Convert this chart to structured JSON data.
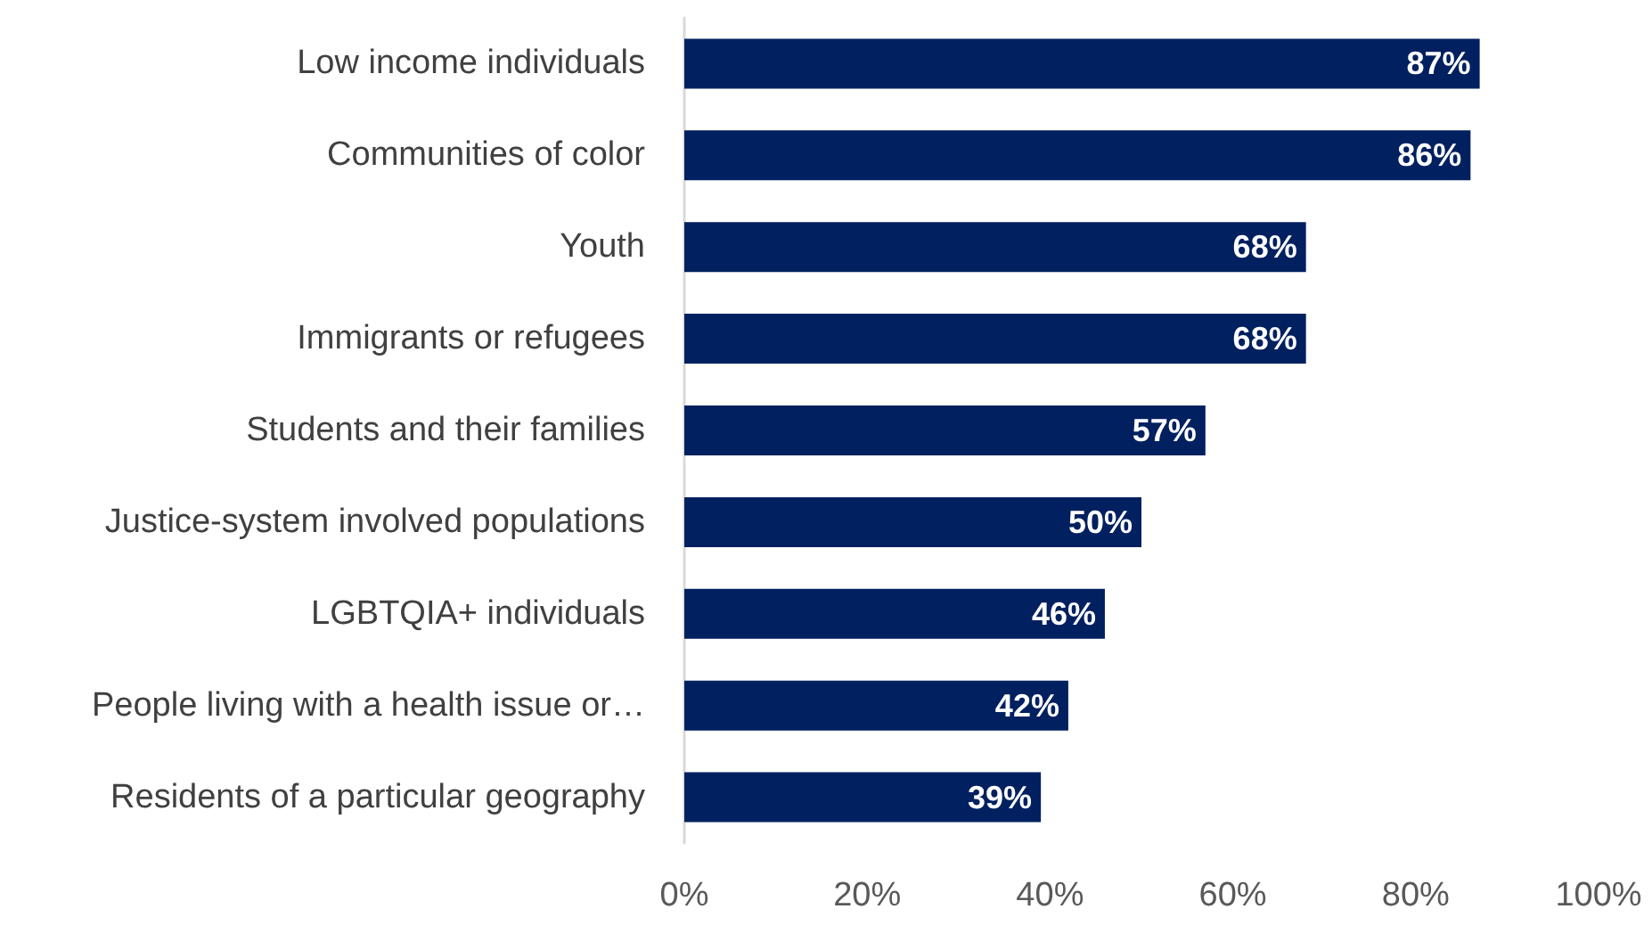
{
  "chart_data": {
    "type": "bar",
    "orientation": "horizontal",
    "categories": [
      "Low income individuals",
      "Communities of color",
      "Youth",
      "Immigrants or refugees",
      "Students and their families",
      "Justice-system involved populations",
      "LGBTQIA+ individuals",
      "People living with a health issue or…",
      "Residents of a particular geography"
    ],
    "values": [
      87,
      86,
      68,
      68,
      57,
      50,
      46,
      42,
      39
    ],
    "value_labels": [
      "87%",
      "86%",
      "68%",
      "68%",
      "57%",
      "50%",
      "46%",
      "42%",
      "39%"
    ],
    "color": "#002060",
    "xlim": [
      0,
      100
    ],
    "xticks": [
      {
        "value": 0,
        "label": "0%"
      },
      {
        "value": 20,
        "label": "20%"
      },
      {
        "value": 40,
        "label": "40%"
      },
      {
        "value": 60,
        "label": "60%"
      },
      {
        "value": 80,
        "label": "80%"
      },
      {
        "value": 100,
        "label": "100%"
      }
    ],
    "grid": false
  }
}
